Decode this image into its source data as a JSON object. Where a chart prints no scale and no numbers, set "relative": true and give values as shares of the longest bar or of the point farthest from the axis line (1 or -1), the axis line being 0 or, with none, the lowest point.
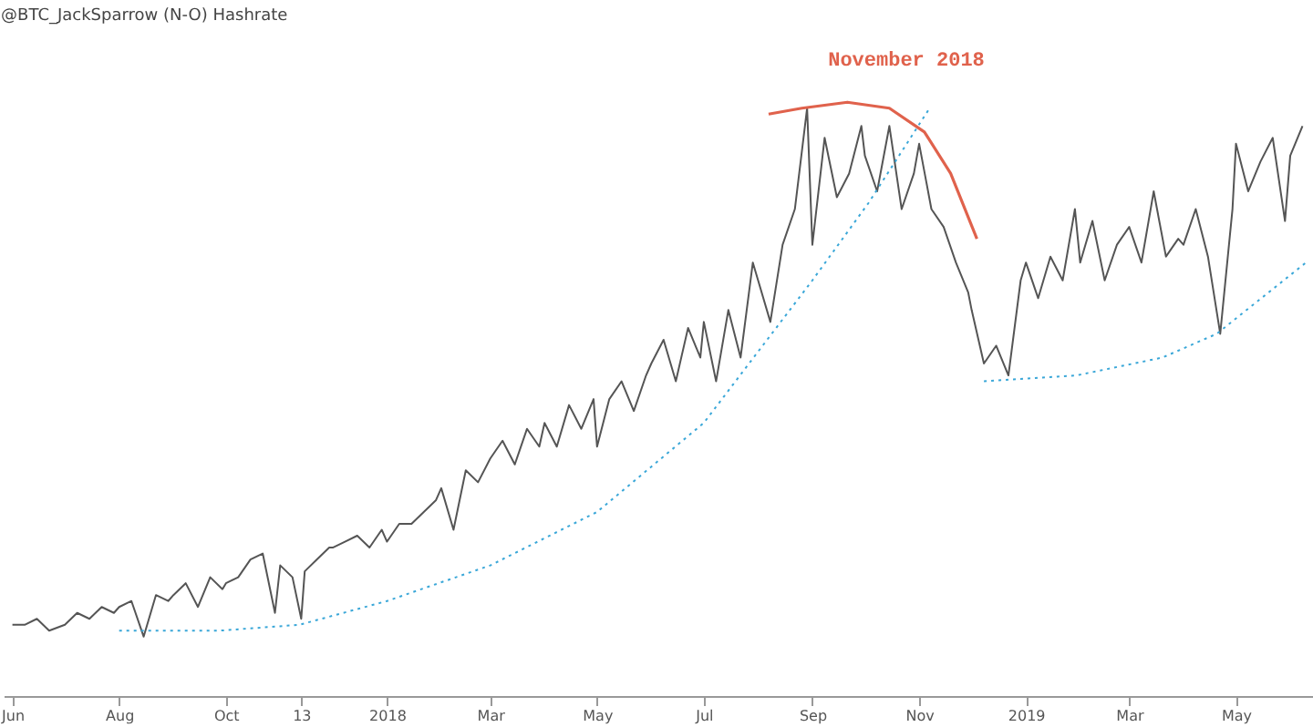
{
  "chart_data": {
    "type": "line",
    "title": "@BTC_JackSparrow (N-O) Hashrate",
    "relative": true,
    "grid": false,
    "marker": "none",
    "xlim": [
      "2017-05-27",
      "2019-06-14"
    ],
    "xticks": [
      {
        "value": "2017-06-01",
        "label": "Jun"
      },
      {
        "value": "2017-08-01",
        "label": "Aug"
      },
      {
        "value": "2017-10-01",
        "label": "Oct"
      },
      {
        "value": "2017-11-13",
        "label": "13"
      },
      {
        "value": "2018-01-01",
        "label": "2018"
      },
      {
        "value": "2018-03-01",
        "label": "Mar"
      },
      {
        "value": "2018-05-01",
        "label": "May"
      },
      {
        "value": "2018-07-01",
        "label": "Jul"
      },
      {
        "value": "2018-09-01",
        "label": "Sep"
      },
      {
        "value": "2018-11-01",
        "label": "Nov"
      },
      {
        "value": "2019-01-01",
        "label": "2019"
      },
      {
        "value": "2019-03-01",
        "label": "Mar"
      },
      {
        "value": "2019-05-01",
        "label": "May"
      }
    ],
    "annotations": [
      "November 2018"
    ],
    "series": [
      {
        "color": "#555555",
        "line_style": "solid",
        "x": [
          "2017-06-01",
          "2017-06-08",
          "2017-06-15",
          "2017-06-22",
          "2017-07-01",
          "2017-07-08",
          "2017-07-15",
          "2017-07-22",
          "2017-07-29",
          "2017-08-01",
          "2017-08-08",
          "2017-08-15",
          "2017-08-22",
          "2017-08-29",
          "2017-09-01",
          "2017-09-08",
          "2017-09-15",
          "2017-09-22",
          "2017-09-29",
          "2017-10-01",
          "2017-10-08",
          "2017-10-15",
          "2017-10-22",
          "2017-10-29",
          "2017-11-01",
          "2017-11-08",
          "2017-11-13",
          "2017-11-15",
          "2017-11-22",
          "2017-11-29",
          "2017-12-01",
          "2017-12-08",
          "2017-12-15",
          "2017-12-22",
          "2017-12-29",
          "2018-01-01",
          "2018-01-08",
          "2018-01-15",
          "2018-01-22",
          "2018-01-29",
          "2018-02-01",
          "2018-02-08",
          "2018-02-15",
          "2018-02-22",
          "2018-03-01",
          "2018-03-08",
          "2018-03-15",
          "2018-03-22",
          "2018-03-29",
          "2018-04-01",
          "2018-04-08",
          "2018-04-15",
          "2018-04-22",
          "2018-04-29",
          "2018-05-01",
          "2018-05-08",
          "2018-05-15",
          "2018-05-22",
          "2018-05-29",
          "2018-06-01",
          "2018-06-08",
          "2018-06-15",
          "2018-06-22",
          "2018-06-29",
          "2018-07-01",
          "2018-07-08",
          "2018-07-15",
          "2018-07-22",
          "2018-07-29",
          "2018-08-01",
          "2018-08-08",
          "2018-08-15",
          "2018-08-22",
          "2018-08-29",
          "2018-09-01",
          "2018-09-08",
          "2018-09-15",
          "2018-09-22",
          "2018-09-29",
          "2018-10-01",
          "2018-10-08",
          "2018-10-15",
          "2018-10-22",
          "2018-10-29",
          "2018-11-01",
          "2018-11-08",
          "2018-11-15",
          "2018-11-22",
          "2018-11-29",
          "2018-12-01",
          "2018-12-08",
          "2018-12-15",
          "2018-12-22",
          "2018-12-29",
          "2019-01-01",
          "2019-01-08",
          "2019-01-15",
          "2019-01-22",
          "2019-01-29",
          "2019-02-01",
          "2019-02-08",
          "2019-02-15",
          "2019-02-22",
          "2019-03-01",
          "2019-03-08",
          "2019-03-15",
          "2019-03-22",
          "2019-03-29",
          "2019-04-01",
          "2019-04-08",
          "2019-04-15",
          "2019-04-22",
          "2019-04-29",
          "2019-05-01",
          "2019-05-08",
          "2019-05-15",
          "2019-05-22",
          "2019-05-29",
          "2019-06-01",
          "2019-06-08"
        ],
        "values": [
          0.12,
          0.12,
          0.13,
          0.11,
          0.12,
          0.14,
          0.13,
          0.15,
          0.14,
          0.15,
          0.16,
          0.1,
          0.17,
          0.16,
          0.17,
          0.19,
          0.15,
          0.2,
          0.18,
          0.19,
          0.2,
          0.23,
          0.24,
          0.14,
          0.22,
          0.2,
          0.13,
          0.21,
          0.23,
          0.25,
          0.25,
          0.26,
          0.27,
          0.25,
          0.28,
          0.26,
          0.29,
          0.29,
          0.31,
          0.33,
          0.35,
          0.28,
          0.38,
          0.36,
          0.4,
          0.43,
          0.39,
          0.45,
          0.42,
          0.46,
          0.42,
          0.49,
          0.45,
          0.5,
          0.42,
          0.5,
          0.53,
          0.48,
          0.54,
          0.56,
          0.6,
          0.53,
          0.62,
          0.57,
          0.63,
          0.53,
          0.65,
          0.57,
          0.73,
          0.7,
          0.63,
          0.76,
          0.82,
          0.99,
          0.76,
          0.94,
          0.84,
          0.88,
          0.96,
          0.91,
          0.85,
          0.96,
          0.82,
          0.88,
          0.93,
          0.82,
          0.79,
          0.73,
          0.68,
          0.65,
          0.56,
          0.59,
          0.54,
          0.7,
          0.73,
          0.67,
          0.74,
          0.7,
          0.82,
          0.73,
          0.8,
          0.7,
          0.76,
          0.79,
          0.73,
          0.85,
          0.74,
          0.77,
          0.76,
          0.82,
          0.74,
          0.61,
          0.82,
          0.93,
          0.85,
          0.9,
          0.94,
          0.8,
          0.91,
          0.96
        ]
      },
      {
        "color": "#3aa7d8",
        "line_style": "dotted",
        "x": [
          "2017-08-01",
          "2017-09-27",
          "2017-11-12",
          "2018-01-01",
          "2018-03-01",
          "2018-05-01",
          "2018-07-01",
          "2018-09-01",
          "2018-10-03",
          "2018-11-07"
        ],
        "values": [
          0.11,
          0.11,
          0.12,
          0.16,
          0.22,
          0.31,
          0.46,
          0.7,
          0.83,
          0.99
        ]
      },
      {
        "color": "#3aa7d8",
        "line_style": "dotted",
        "x": [
          "2018-12-08",
          "2019-01-30",
          "2019-03-20",
          "2019-04-20",
          "2019-06-10"
        ],
        "values": [
          0.53,
          0.54,
          0.57,
          0.61,
          0.73
        ]
      },
      {
        "color": "#e0624c",
        "line_style": "solid",
        "x": [
          "2018-08-07",
          "2018-08-26",
          "2018-09-21",
          "2018-10-15",
          "2018-11-04",
          "2018-11-19",
          "2018-12-04"
        ],
        "values": [
          0.98,
          0.99,
          1.0,
          0.99,
          0.95,
          0.88,
          0.77
        ]
      }
    ]
  }
}
